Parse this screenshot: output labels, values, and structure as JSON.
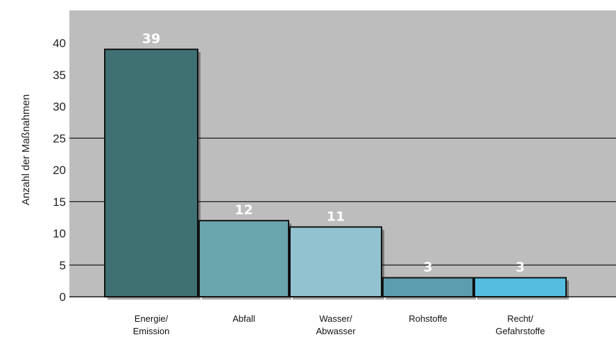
{
  "chart_data": {
    "type": "bar",
    "ylabel": "Anzahl der Maßnahmen",
    "ylim": [
      0,
      42
    ],
    "yticks": [
      0,
      5,
      10,
      15,
      20,
      25,
      30,
      35,
      40
    ],
    "grid": "horizontal, dark lines at 5, 15, 25",
    "categories": [
      [
        "Energie/",
        "Emission"
      ],
      [
        "Abfall"
      ],
      [
        "Wasser/",
        "Abwasser"
      ],
      [
        "Rohstoffe"
      ],
      [
        "Recht/",
        "Gefahrstoffe"
      ]
    ],
    "values": [
      39,
      12,
      11,
      3,
      3
    ],
    "data_labels": [
      "39",
      "12",
      "11",
      "3",
      "3"
    ],
    "colors": [
      "#3f7173",
      "#6aa6ad",
      "#92c2cf",
      "#5d9db0",
      "#54bde0"
    ],
    "plot_background": "#bdbdbd"
  }
}
